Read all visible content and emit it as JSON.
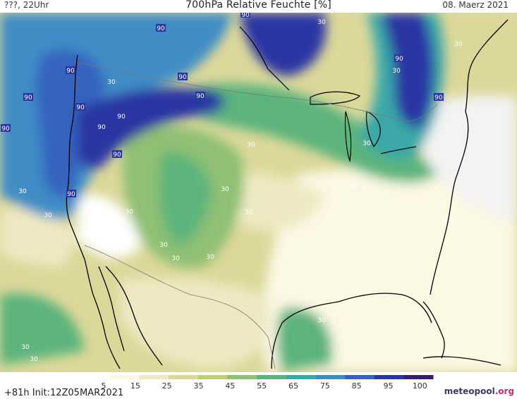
{
  "header": {
    "left": "???, 22Uhr",
    "title": "700hPa Relative Feuchte [%]",
    "date": "08. Maerz 2021"
  },
  "footer": {
    "run": "+81h  Init:12Z05MAR2021",
    "logo": "meteopool",
    "logo_suffix": ".org"
  },
  "legend": {
    "ticks": [
      "5",
      "15",
      "25",
      "35",
      "45",
      "55",
      "65",
      "75",
      "85",
      "95",
      "100"
    ],
    "colors": [
      "#ffffff",
      "#fbf8e4",
      "#eee9c2",
      "#dcd89a",
      "#bccf73",
      "#8fc074",
      "#5cb47c",
      "#3aa7a8",
      "#3f8dc6",
      "#3563bf",
      "#2b36a3",
      "#3a1c74"
    ]
  },
  "contour_labels": {
    "90": "90",
    "30": "30"
  },
  "colors": {
    "dry": "#fbf8e4",
    "moist": "#3563bf",
    "very_moist": "#2b36a3"
  }
}
